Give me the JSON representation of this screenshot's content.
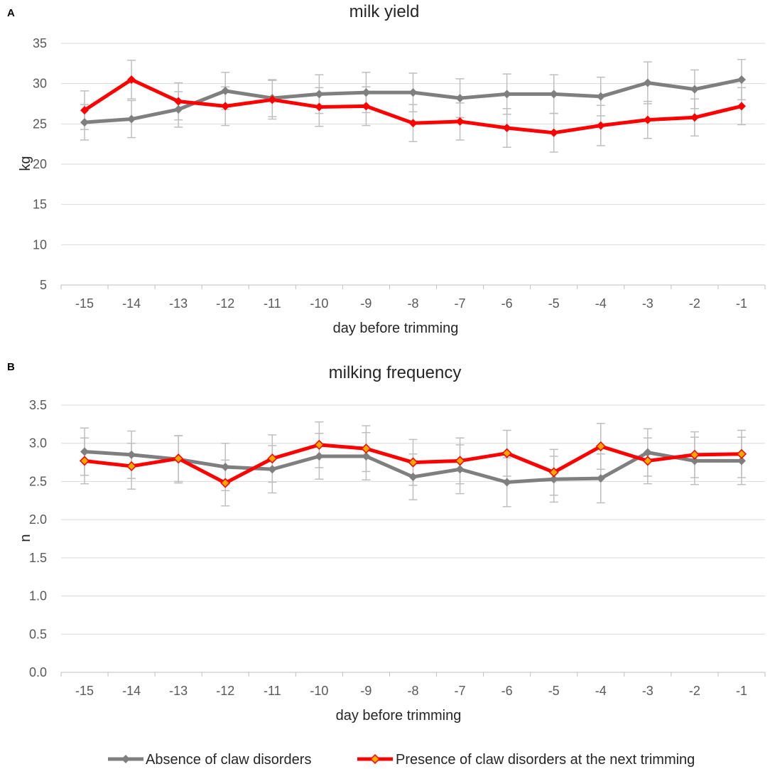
{
  "chart_data": [
    {
      "type": "line",
      "panel": "A",
      "title": "milk yield",
      "xlabel": "day before trimming",
      "ylabel": "kg",
      "categories": [
        "-15",
        "-14",
        "-13",
        "-12",
        "-11",
        "-10",
        "-9",
        "-8",
        "-7",
        "-6",
        "-5",
        "-4",
        "-3",
        "-2",
        "-1"
      ],
      "yticks": [
        "5",
        "10",
        "15",
        "20",
        "25",
        "30",
        "35"
      ],
      "ylim": [
        5,
        35
      ],
      "grid": true,
      "series": [
        {
          "name": "Absence of claw disorders",
          "color": "#7f7f7f",
          "values": [
            25.2,
            25.6,
            26.8,
            29.1,
            28.2,
            28.7,
            28.9,
            28.9,
            28.2,
            28.7,
            28.7,
            28.4,
            30.1,
            29.3,
            30.5
          ],
          "errors": [
            2.2,
            2.3,
            2.2,
            2.3,
            2.3,
            2.4,
            2.5,
            2.4,
            2.4,
            2.5,
            2.4,
            2.4,
            2.6,
            2.4,
            2.5
          ]
        },
        {
          "name": "Presence of claw disorders at the next trimming",
          "color": "#ff0000",
          "values": [
            26.7,
            30.5,
            27.8,
            27.2,
            28.0,
            27.1,
            27.2,
            25.1,
            25.3,
            24.5,
            23.9,
            24.8,
            25.5,
            25.8,
            27.2
          ],
          "errors": [
            2.4,
            2.4,
            2.3,
            2.4,
            2.4,
            2.4,
            2.4,
            2.3,
            2.3,
            2.4,
            2.4,
            2.5,
            2.3,
            2.3,
            2.3
          ]
        }
      ]
    },
    {
      "type": "line",
      "panel": "B",
      "title": "milking frequency",
      "xlabel": "day before trimming",
      "ylabel": "n",
      "categories": [
        "-15",
        "-14",
        "-13",
        "-12",
        "-11",
        "-10",
        "-9",
        "-8",
        "-7",
        "-6",
        "-5",
        "-4",
        "-3",
        "-2",
        "-1"
      ],
      "yticks": [
        "0.0",
        "0.5",
        "1.0",
        "1.5",
        "2.0",
        "2.5",
        "3.0",
        "3.5"
      ],
      "ylim": [
        0,
        3.5
      ],
      "grid": true,
      "series": [
        {
          "name": "Absence of claw disorders",
          "color": "#7f7f7f",
          "values": [
            2.89,
            2.85,
            2.79,
            2.69,
            2.66,
            2.83,
            2.83,
            2.56,
            2.66,
            2.49,
            2.53,
            2.54,
            2.88,
            2.77,
            2.77
          ],
          "errors": [
            0.31,
            0.31,
            0.31,
            0.31,
            0.31,
            0.3,
            0.31,
            0.3,
            0.32,
            0.32,
            0.3,
            0.32,
            0.31,
            0.31,
            0.31
          ]
        },
        {
          "name": "Presence of claw disorders at the next trimming",
          "color": "#ff0000",
          "values": [
            2.77,
            2.7,
            2.8,
            2.48,
            2.8,
            2.98,
            2.93,
            2.75,
            2.77,
            2.87,
            2.62,
            2.96,
            2.77,
            2.85,
            2.86
          ],
          "errors": [
            0.3,
            0.3,
            0.3,
            0.3,
            0.31,
            0.3,
            0.3,
            0.3,
            0.3,
            0.3,
            0.3,
            0.3,
            0.3,
            0.3,
            0.31
          ]
        }
      ]
    }
  ],
  "legend": {
    "items": [
      {
        "label": "Absence of claw disorders",
        "line_color": "#7f7f7f",
        "marker_color": "#7f7f7f"
      },
      {
        "label": "Presence of claw disorders at the next trimming",
        "line_color": "#ff0000",
        "marker_color": "#f5a800"
      }
    ]
  },
  "style": {
    "error_bar_color": "#bfbfbf",
    "red_marker_fill": "#f5a800",
    "gray_marker_fill": "#7f7f7f"
  }
}
